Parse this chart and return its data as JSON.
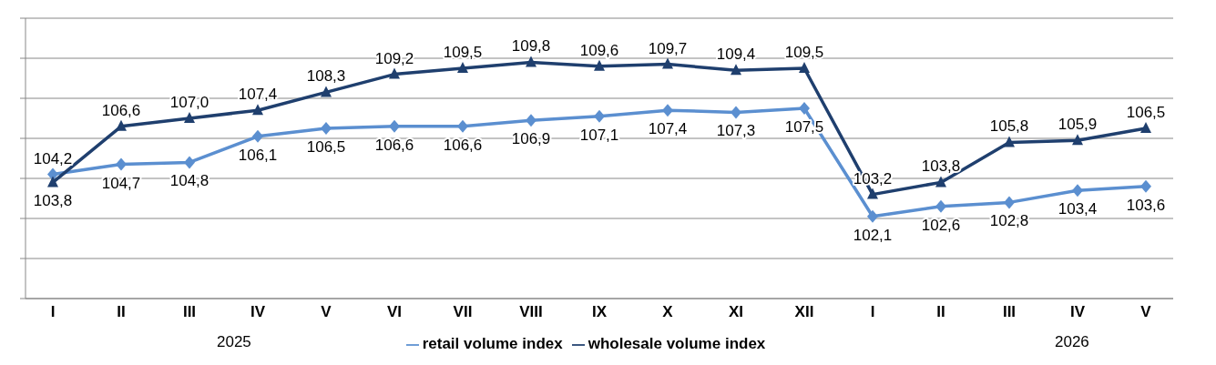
{
  "chart_data": {
    "type": "line",
    "categories": [
      "I",
      "II",
      "III",
      "IV",
      "V",
      "VI",
      "VII",
      "VIII",
      "IX",
      "X",
      "XI",
      "XII",
      "I",
      "II",
      "III",
      "IV",
      "V"
    ],
    "series": [
      {
        "name": "retail volume index",
        "color": "#5b8fd0",
        "marker": "diamond",
        "values": [
          104.2,
          104.7,
          104.8,
          106.1,
          106.5,
          106.6,
          106.6,
          106.9,
          107.1,
          107.4,
          107.3,
          107.5,
          102.1,
          102.6,
          102.8,
          103.4,
          103.6
        ],
        "value_labels": [
          "104,2",
          "104,7",
          "104,8",
          "106,1",
          "106,5",
          "106,6",
          "106,6",
          "106,9",
          "107,1",
          "107,4",
          "107,3",
          "107,5",
          "102,1",
          "102,6",
          "102,8",
          "103,4",
          "103,6"
        ]
      },
      {
        "name": "wholesale volume index",
        "color": "#1f3f6e",
        "marker": "triangle",
        "values": [
          103.8,
          106.6,
          107.0,
          107.4,
          108.3,
          109.2,
          109.5,
          109.8,
          109.6,
          109.7,
          109.4,
          109.5,
          103.2,
          103.8,
          105.8,
          105.9,
          106.5
        ],
        "value_labels": [
          "103,8",
          "106,6",
          "107,0",
          "107,4",
          "108,3",
          "109,2",
          "109,5",
          "109,8",
          "109,6",
          "109,7",
          "109,4",
          "109,5",
          "103,2",
          "103,8",
          "105,8",
          "105,9",
          "106,5"
        ]
      }
    ],
    "ylim": [
      98,
      112
    ],
    "yticks": [
      {
        "value": 98,
        "label": null
      },
      {
        "value": 100,
        "label": null
      },
      {
        "value": 102,
        "label": null
      },
      {
        "value": 104,
        "label": null
      },
      {
        "value": 106,
        "label": null
      },
      {
        "value": 108,
        "label": null
      },
      {
        "value": 110,
        "label": null
      },
      {
        "value": 112,
        "label": null
      }
    ],
    "grid": "y",
    "legend": "bottom",
    "tick_labels": "x",
    "line_style": "solid",
    "annotations": [
      "2025",
      "2026"
    ]
  }
}
